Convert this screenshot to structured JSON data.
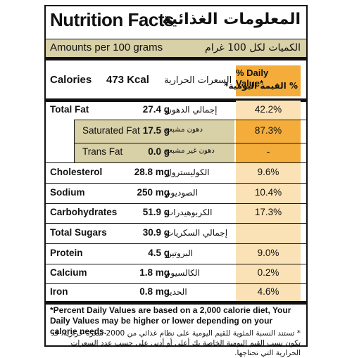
{
  "title_en": "Nutrition Facts",
  "title_ar": "المعلومات الغذائية",
  "amounts_en": "Amounts per 100 grams",
  "amounts_ar": "الكميات لكل 100 غرام",
  "calories_label": "Calories",
  "calories_value": "473 Kcal",
  "calories_ar": "السعرات الحرارية",
  "dv_header_en": "% Daily Value*",
  "dv_header_ar": "% القيمة اليومية*",
  "nutrients": [
    {
      "en": "Total Fat",
      "amount": "27.4 g",
      "ar": "إجمالي الدهون",
      "dv": "42.2%"
    },
    {
      "en": "Saturated Fat",
      "amount": "17.5 g",
      "ar": "دهون مشبعة",
      "dv": "87.3%"
    },
    {
      "en": "Trans Fat",
      "amount": "0.0 g",
      "ar": "دهون غير مشبعة",
      "dv": "-"
    },
    {
      "en": "Cholesterol",
      "amount": "28.8 mg",
      "ar": "الكوليسترول",
      "dv": "9.6%"
    },
    {
      "en": "Sodium",
      "amount": "250 mg",
      "ar": "الصوديوم",
      "dv": "10.4%"
    },
    {
      "en": "Carbohydrates",
      "amount": "51.9 g",
      "ar": "الكربوهيدرات",
      "dv": "17.3%"
    },
    {
      "en": "Total Sugars",
      "amount": "30.9 g",
      "ar": "إجمالي السكريات",
      "dv": ""
    },
    {
      "en": "Protein",
      "amount": "4.5 g",
      "ar": "البروتين",
      "dv": "9.0%"
    },
    {
      "en": "Calcium",
      "amount": "1.8 mg",
      "ar": "الكالسيوم",
      "dv": "0.2%"
    },
    {
      "en": "Iron",
      "amount": "0.8 mg",
      "ar": "الحديد",
      "dv": "4.6%"
    }
  ],
  "footnote_en": "*Percent Daily Values are based on a 2,000 calorie diet, Your Daily Values may be higher or lower depending on your calorie needs.",
  "footnote_ar": "* تستند النسبة المئوية للقيم اليومية على نظام غذائي من 2000 سعرة حرارية، قد تكون نسب القيم اليومية الخاصة بك أعلى أو أدنى على حسب عدد السعرات الحرارية التي تحتاجها.",
  "colors": {
    "tan": "#d8d0a6",
    "orange": "#f4ad3a",
    "pale_orange": "#fbe2b6",
    "bar": "#fdf6dc"
  }
}
